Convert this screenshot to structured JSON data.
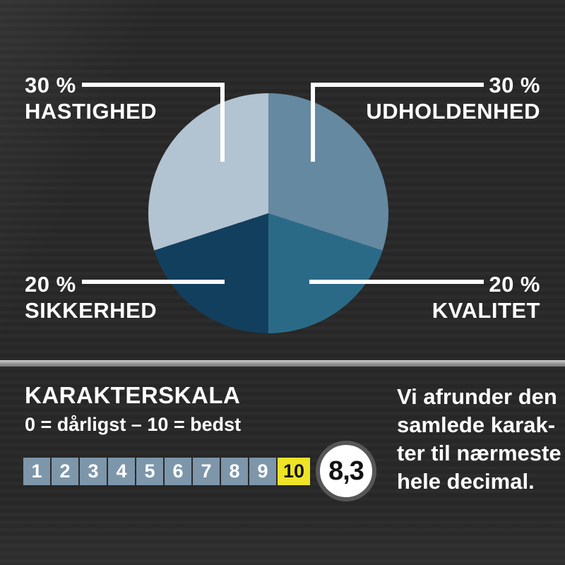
{
  "chart_data": {
    "type": "pie",
    "title": "",
    "start_angle_deg": 0,
    "direction": "clockwise",
    "slices": [
      {
        "label": "UDHOLDENHED",
        "pct": 30,
        "color": "#6589a1"
      },
      {
        "label": "KVALITET",
        "pct": 20,
        "color": "#2b6a87"
      },
      {
        "label": "SIKKERHED",
        "pct": 20,
        "color": "#123f5e"
      },
      {
        "label": "HASTIGHED",
        "pct": 30,
        "color": "#b2c3d1"
      }
    ],
    "legend_position": "outside-corner-callouts"
  },
  "pie_labels": {
    "top_left": {
      "pct": "30 %",
      "name": "HASTIGHED"
    },
    "top_right": {
      "pct": "30 %",
      "name": "UDHOLDENHED"
    },
    "bottom_left": {
      "pct": "20 %",
      "name": "SIKKERHED"
    },
    "bottom_right": {
      "pct": "20 %",
      "name": "KVALITET"
    }
  },
  "scale": {
    "title": "KARAKTERSKALA",
    "subtitle": "0 = dårligst – 10 = bedst",
    "numbers": [
      "1",
      "2",
      "3",
      "4",
      "5",
      "6",
      "7",
      "8",
      "9",
      "10"
    ],
    "highlighted": "10",
    "score": "8,3",
    "note_lines": [
      "Vi afrunder den",
      "samlede karak-",
      "ter til nærmeste",
      "hele decimal."
    ]
  },
  "colors": {
    "background": "#282828",
    "text": "#ffffff",
    "leader_line": "#ffffff",
    "divider": "#a8a8a8",
    "scale_box": "#7d96aa",
    "scale_box_highlight": "#eee326",
    "score_circle_fill": "#ffffff",
    "score_circle_ring": "#565656",
    "score_text": "#121212"
  }
}
